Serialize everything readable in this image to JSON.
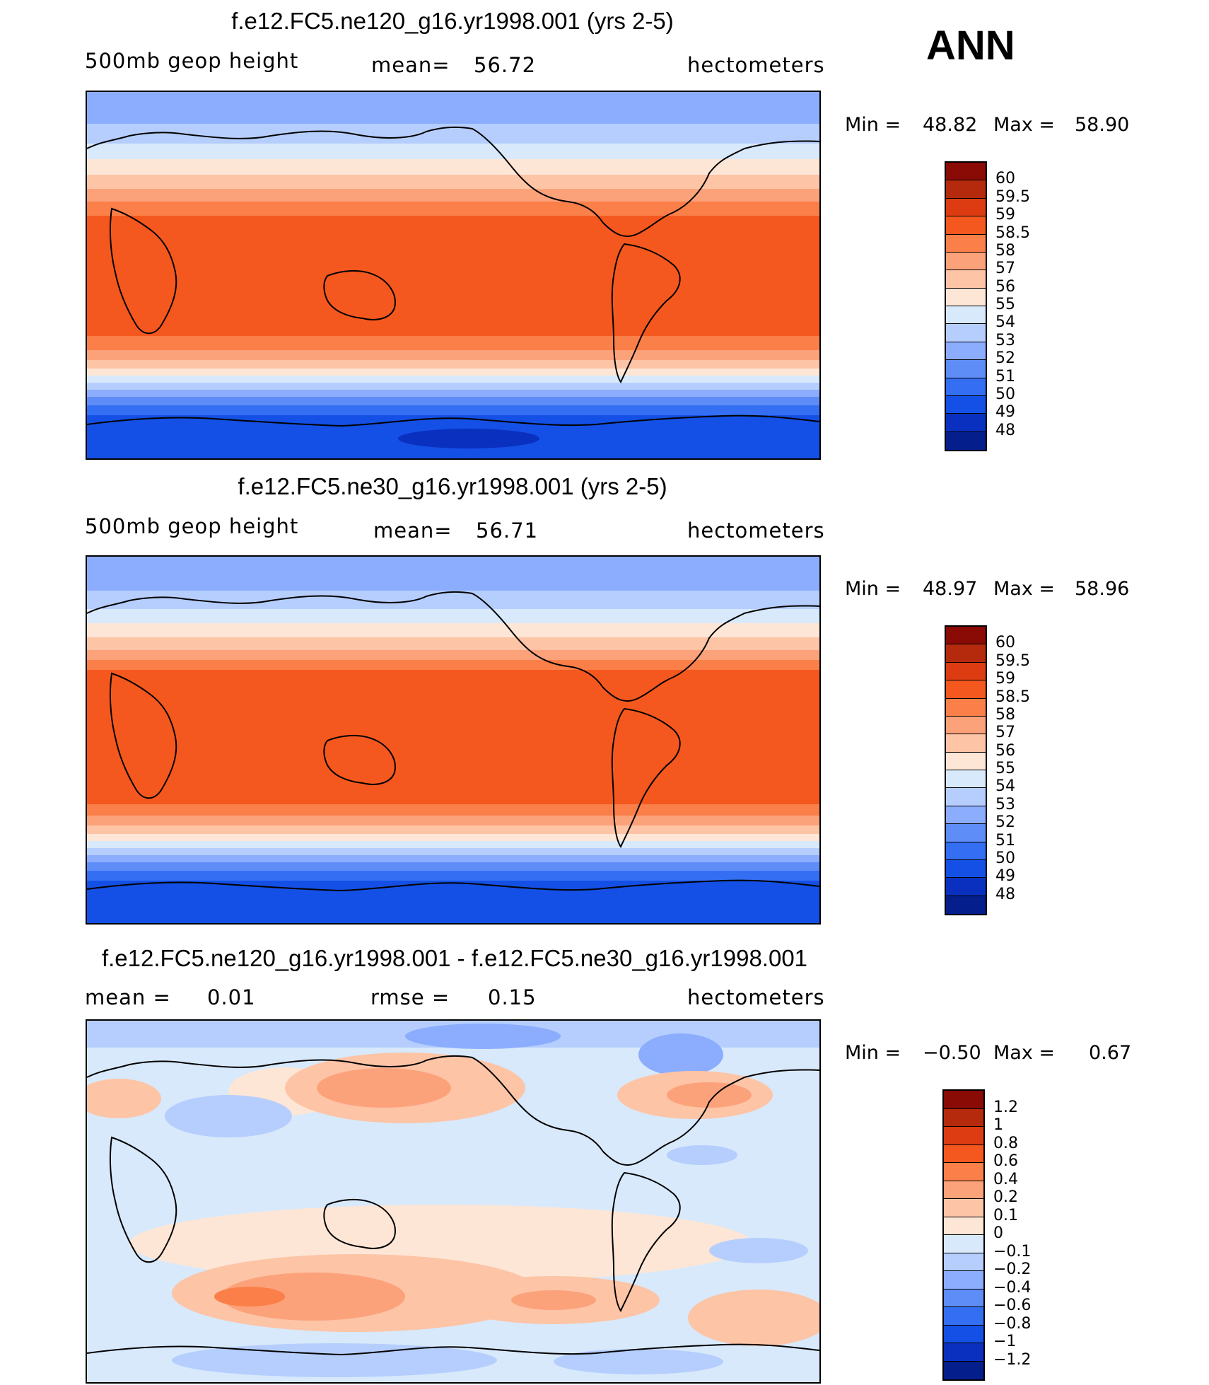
{
  "season_label": "ANN",
  "panels": [
    {
      "title": "f.e12.FC5.ne120_g16.yr1998.001 (yrs 2-5)",
      "variable": "500mb geop height",
      "center_label": "mean=",
      "center_value": "56.72",
      "units": "hectometers",
      "min_label": "Min =",
      "min_value": "48.82",
      "max_label": "Max =",
      "max_value": "58.90",
      "colorbar": {
        "labels": [
          "60",
          "59.5",
          "59",
          "58.5",
          "58",
          "57",
          "56",
          "55",
          "54",
          "53",
          "52",
          "51",
          "50",
          "49",
          "48"
        ],
        "colors": [
          "#8a0a05",
          "#b52a0c",
          "#dd3c12",
          "#f5581e",
          "#fb7f49",
          "#fca27b",
          "#fdc4a6",
          "#fde6d6",
          "#d8e9fb",
          "#b5cefd",
          "#8cadfd",
          "#5f8df8",
          "#336ef3",
          "#1450e5",
          "#0a30c0",
          "#041e8c"
        ]
      }
    },
    {
      "title": "f.e12.FC5.ne30_g16.yr1998.001 (yrs 2-5)",
      "variable": "500mb geop height",
      "center_label": "mean=",
      "center_value": "56.71",
      "units": "hectometers",
      "min_label": "Min =",
      "min_value": "48.97",
      "max_label": "Max =",
      "max_value": "58.96",
      "colorbar": {
        "labels": [
          "60",
          "59.5",
          "59",
          "58.5",
          "58",
          "57",
          "56",
          "55",
          "54",
          "53",
          "52",
          "51",
          "50",
          "49",
          "48"
        ],
        "colors": [
          "#8a0a05",
          "#b52a0c",
          "#dd3c12",
          "#f5581e",
          "#fb7f49",
          "#fca27b",
          "#fdc4a6",
          "#fde6d6",
          "#d8e9fb",
          "#b5cefd",
          "#8cadfd",
          "#5f8df8",
          "#336ef3",
          "#1450e5",
          "#0a30c0",
          "#041e8c"
        ]
      }
    },
    {
      "title": "f.e12.FC5.ne120_g16.yr1998.001 - f.e12.FC5.ne30_g16.yr1998.001",
      "variable": "mean =",
      "variable_value": "0.01",
      "center_label": "rmse =",
      "center_value": "0.15",
      "units": "hectometers",
      "min_label": "Min =",
      "min_value": "−0.50",
      "max_label": "Max =",
      "max_value": "0.67",
      "colorbar": {
        "labels": [
          "1.2",
          "1",
          "0.8",
          "0.6",
          "0.4",
          "0.2",
          "0.1",
          "0",
          "−0.1",
          "−0.2",
          "−0.4",
          "−0.6",
          "−0.8",
          "−1",
          "−1.2"
        ],
        "colors": [
          "#8a0a05",
          "#b52a0c",
          "#dd3c12",
          "#f5581e",
          "#fb7f49",
          "#fca27b",
          "#fdc4a6",
          "#fde6d6",
          "#d8e9fb",
          "#b5cefd",
          "#8cadfd",
          "#5f8df8",
          "#336ef3",
          "#1450e5",
          "#0a30c0",
          "#041e8c"
        ]
      }
    }
  ]
}
